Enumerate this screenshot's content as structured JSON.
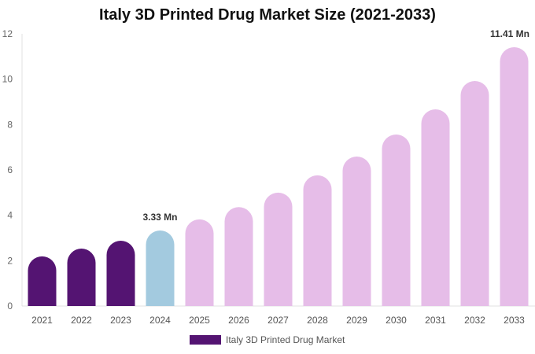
{
  "chart_data": {
    "type": "bar",
    "title": "Italy 3D Printed Drug Market Size (2021-2033)",
    "categories": [
      "2021",
      "2022",
      "2023",
      "2024",
      "2025",
      "2026",
      "2027",
      "2028",
      "2029",
      "2030",
      "2031",
      "2032",
      "2033"
    ],
    "series": [
      {
        "name": "Italy 3D Printed Drug Market",
        "values": [
          2.19,
          2.53,
          2.88,
          3.33,
          3.82,
          4.36,
          5.0,
          5.76,
          6.59,
          7.56,
          8.67,
          9.92,
          11.41
        ]
      }
    ],
    "bar_colors": [
      "#541472",
      "#541472",
      "#541472",
      "#a3cadf",
      "#e6bde8",
      "#e6bde8",
      "#e6bde8",
      "#e6bde8",
      "#e6bde8",
      "#e6bde8",
      "#e6bde8",
      "#e6bde8",
      "#e6bde8"
    ],
    "data_labels": {
      "3": "3.33 Mn",
      "12": "11.41 Mn"
    },
    "yticks": [
      "0",
      "2",
      "4",
      "6",
      "8",
      "10",
      "12"
    ],
    "ylim": [
      0,
      12
    ],
    "xlabel": "",
    "ylabel": "",
    "grid": false,
    "legend_position": "bottom",
    "legend_color": "#541472"
  }
}
